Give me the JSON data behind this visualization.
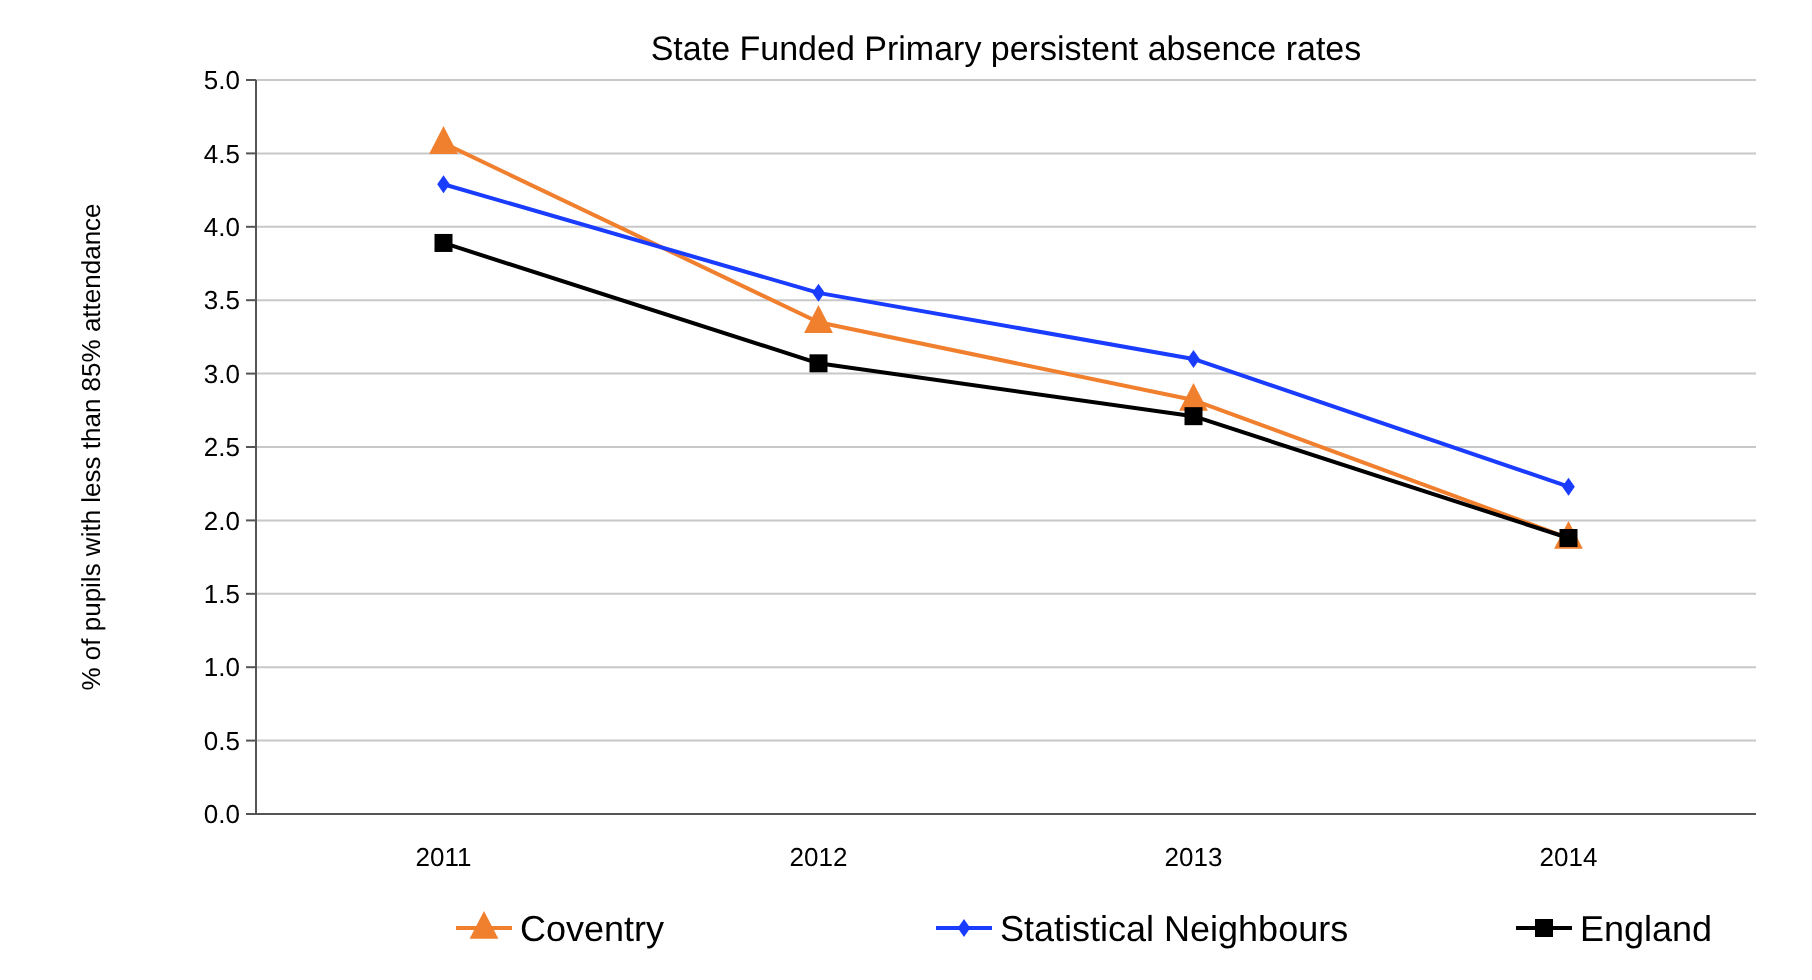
{
  "chart_data": {
    "type": "line",
    "title": "State Funded Primary persistent absence rates",
    "ylabel": "% of pupils with less than 85% attendance",
    "categories": [
      "2011",
      "2012",
      "2013",
      "2014"
    ],
    "series": [
      {
        "name": "Coventry",
        "color": "#f07f2e",
        "marker": "triangle",
        "values": [
          4.57,
          3.35,
          2.82,
          1.88
        ]
      },
      {
        "name": "Statistical Neighbours",
        "color": "#1a3cff",
        "marker": "diamond",
        "values": [
          4.29,
          3.55,
          3.1,
          2.23
        ]
      },
      {
        "name": "England",
        "color": "#000000",
        "marker": "square",
        "values": [
          3.89,
          3.07,
          2.71,
          1.88
        ]
      }
    ],
    "ylim": [
      0,
      5
    ],
    "yticks": [
      {
        "value": 0,
        "label": "0.0"
      },
      {
        "value": 0.5,
        "label": "0.5"
      },
      {
        "value": 1,
        "label": "1.0"
      },
      {
        "value": 1.5,
        "label": "1.5"
      },
      {
        "value": 2,
        "label": "2.0"
      },
      {
        "value": 2.5,
        "label": "2.5"
      },
      {
        "value": 3,
        "label": "3.0"
      },
      {
        "value": 3.5,
        "label": "3.5"
      },
      {
        "value": 4,
        "label": "4.0"
      },
      {
        "value": 4.5,
        "label": "4.5"
      },
      {
        "value": 5,
        "label": "5.0"
      }
    ],
    "grid": "y",
    "legend": "bottom"
  }
}
